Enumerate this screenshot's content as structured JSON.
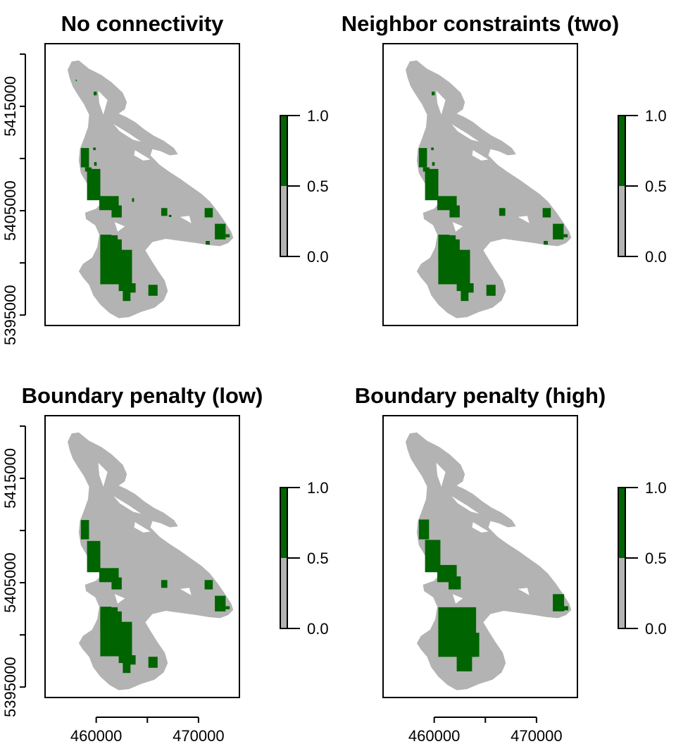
{
  "colors": {
    "background": "#ffffff",
    "land": "#b3b3b3",
    "selected": "#006400",
    "frame": "#000000"
  },
  "chart_data": [
    {
      "type": "heatmap",
      "title": "No connectivity",
      "xlabel": "",
      "ylabel": "",
      "xlim": [
        455000,
        474000
      ],
      "ylim": [
        5394000,
        5421000
      ],
      "xticks": [],
      "yticks": [
        {
          "value": 5395000,
          "label": "5395000"
        },
        {
          "value": 5400000,
          "label": ""
        },
        {
          "value": 5405000,
          "label": "5405000"
        },
        {
          "value": 5410000,
          "label": ""
        },
        {
          "value": 5415000,
          "label": "5415000"
        },
        {
          "value": 5420000,
          "label": ""
        }
      ],
      "legend": {
        "min": 0.0,
        "max": 1.0,
        "ticks": [
          "0.0",
          "0.5",
          "1.0"
        ],
        "low_color": "#b3b3b3",
        "high_color": "#006400"
      },
      "selected_patches": [
        [
          460400,
          5397950,
          462500,
          5402250
        ],
        [
          462200,
          5397300,
          463500,
          5401250
        ],
        [
          460400,
          5400350,
          461500,
          5402700
        ],
        [
          462600,
          5396350,
          463350,
          5397900
        ],
        [
          461500,
          5401100,
          462100,
          5402650
        ],
        [
          463300,
          5397150,
          463850,
          5398050
        ],
        [
          465100,
          5396850,
          466000,
          5397900
        ],
        [
          458500,
          5409150,
          459300,
          5411000
        ],
        [
          459100,
          5406000,
          460400,
          5409000
        ],
        [
          460300,
          5405050,
          462200,
          5406400
        ],
        [
          461500,
          5404350,
          462500,
          5405500
        ],
        [
          459800,
          5409300,
          460050,
          5409650
        ],
        [
          458900,
          5408750,
          459550,
          5409150
        ],
        [
          463500,
          5405850,
          463700,
          5406200
        ],
        [
          466350,
          5404500,
          466950,
          5405250
        ],
        [
          467100,
          5404400,
          467350,
          5404600
        ],
        [
          470600,
          5404350,
          471400,
          5405250
        ],
        [
          471600,
          5402250,
          472650,
          5403750
        ],
        [
          470700,
          5401750,
          471100,
          5402100
        ],
        [
          472650,
          5402450,
          473050,
          5402750
        ],
        [
          459750,
          5416050,
          460050,
          5416400
        ],
        [
          459700,
          5410800,
          459950,
          5411050
        ],
        [
          458000,
          5417400,
          458100,
          5417550
        ]
      ]
    },
    {
      "type": "heatmap",
      "title": "Neighbor constraints (two)",
      "xlabel": "",
      "ylabel": "",
      "xlim": [
        455000,
        474000
      ],
      "ylim": [
        5394000,
        5421000
      ],
      "xticks": [],
      "yticks": [],
      "legend": {
        "min": 0.0,
        "max": 1.0,
        "ticks": [
          "0.0",
          "0.5",
          "1.0"
        ],
        "low_color": "#b3b3b3",
        "high_color": "#006400"
      },
      "selected_patches": [
        [
          460400,
          5397950,
          462500,
          5402250
        ],
        [
          462200,
          5397300,
          463500,
          5401250
        ],
        [
          460400,
          5400350,
          461500,
          5402700
        ],
        [
          462600,
          5396350,
          463350,
          5397900
        ],
        [
          461500,
          5401100,
          462100,
          5402650
        ],
        [
          463300,
          5397150,
          463850,
          5398050
        ],
        [
          465100,
          5396850,
          466000,
          5397900
        ],
        [
          458500,
          5409150,
          459300,
          5411000
        ],
        [
          459100,
          5406000,
          460400,
          5409000
        ],
        [
          460300,
          5405050,
          462200,
          5406400
        ],
        [
          461500,
          5404350,
          462500,
          5405500
        ],
        [
          459800,
          5409300,
          460050,
          5409650
        ],
        [
          458900,
          5408750,
          459550,
          5409150
        ],
        [
          466350,
          5404500,
          466950,
          5405250
        ],
        [
          470600,
          5404350,
          471400,
          5405250
        ],
        [
          471600,
          5402250,
          472650,
          5403750
        ],
        [
          470700,
          5401750,
          471100,
          5402100
        ],
        [
          472650,
          5402450,
          473050,
          5402750
        ],
        [
          459750,
          5416050,
          460050,
          5416400
        ],
        [
          459700,
          5410800,
          459950,
          5411050
        ]
      ]
    },
    {
      "type": "heatmap",
      "title": "Boundary penalty (low)",
      "xlabel": "",
      "ylabel": "",
      "xlim": [
        455000,
        474000
      ],
      "ylim": [
        5394000,
        5421000
      ],
      "xticks": [
        {
          "value": 460000,
          "label": "460000"
        },
        {
          "value": 465000,
          "label": ""
        },
        {
          "value": 470000,
          "label": "470000"
        }
      ],
      "yticks": [
        {
          "value": 5395000,
          "label": "5395000"
        },
        {
          "value": 5400000,
          "label": ""
        },
        {
          "value": 5405000,
          "label": "5405000"
        },
        {
          "value": 5410000,
          "label": ""
        },
        {
          "value": 5415000,
          "label": "5415000"
        },
        {
          "value": 5420000,
          "label": ""
        }
      ],
      "legend": {
        "min": 0.0,
        "max": 1.0,
        "ticks": [
          "0.0",
          "0.5",
          "1.0"
        ],
        "low_color": "#b3b3b3",
        "high_color": "#006400"
      },
      "selected_patches": [
        [
          460400,
          5397950,
          462500,
          5402250
        ],
        [
          462200,
          5397300,
          463500,
          5401250
        ],
        [
          460400,
          5400350,
          461500,
          5402700
        ],
        [
          462600,
          5396350,
          463350,
          5397900
        ],
        [
          461500,
          5401100,
          462100,
          5402650
        ],
        [
          463300,
          5397150,
          463850,
          5398050
        ],
        [
          465100,
          5396850,
          466000,
          5397900
        ],
        [
          458500,
          5409150,
          459300,
          5411000
        ],
        [
          459100,
          5406000,
          460400,
          5409000
        ],
        [
          460300,
          5405050,
          462200,
          5406400
        ],
        [
          461500,
          5404350,
          462500,
          5405500
        ],
        [
          466350,
          5404500,
          466950,
          5405250
        ],
        [
          470600,
          5404350,
          471400,
          5405250
        ],
        [
          471600,
          5402250,
          472650,
          5403750
        ],
        [
          472650,
          5402450,
          473050,
          5402750
        ]
      ]
    },
    {
      "type": "heatmap",
      "title": "Boundary penalty (high)",
      "xlabel": "",
      "ylabel": "",
      "xlim": [
        455000,
        474000
      ],
      "ylim": [
        5394000,
        5421000
      ],
      "xticks": [
        {
          "value": 460000,
          "label": "460000"
        },
        {
          "value": 465000,
          "label": ""
        },
        {
          "value": 470000,
          "label": "470000"
        }
      ],
      "yticks": [],
      "legend": {
        "min": 0.0,
        "max": 1.0,
        "ticks": [
          "0.0",
          "0.5",
          "1.0"
        ],
        "low_color": "#b3b3b3",
        "high_color": "#006400"
      },
      "selected_patches": [
        [
          460400,
          5397900,
          464100,
          5402650
        ],
        [
          462200,
          5396500,
          463700,
          5398400
        ],
        [
          463500,
          5397900,
          464400,
          5400200
        ],
        [
          458500,
          5409150,
          459500,
          5411050
        ],
        [
          459100,
          5406000,
          460600,
          5409100
        ],
        [
          460300,
          5405050,
          462200,
          5406700
        ],
        [
          461400,
          5404350,
          462600,
          5405600
        ],
        [
          471600,
          5402250,
          472700,
          5403900
        ],
        [
          472600,
          5402350,
          473100,
          5402750
        ]
      ]
    }
  ]
}
